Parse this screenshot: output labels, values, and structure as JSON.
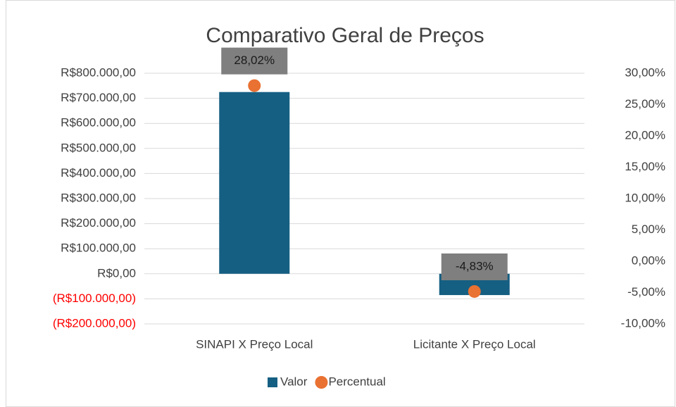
{
  "chart_data": {
    "type": "bar",
    "title": "Comparativo Geral de Preços",
    "categories": [
      "SINAPI X Preço Local",
      "Licitante X Preço Local"
    ],
    "series": [
      {
        "name": "Valor",
        "type": "bar",
        "color": "#155f82",
        "values": [
          725000,
          -85000
        ]
      },
      {
        "name": "Percentual",
        "type": "scatter",
        "axis": "y2",
        "color": "#e97132",
        "values": [
          28.02,
          -4.83
        ],
        "value_labels": [
          "28,02%",
          "-4,83%"
        ]
      }
    ],
    "ylim": [
      -200000,
      800000
    ],
    "yticks": [
      {
        "value": -200000,
        "label": "(R$200.000,00)"
      },
      {
        "value": -100000,
        "label": "(R$100.000,00)"
      },
      {
        "value": 0,
        "label": "R$0,00"
      },
      {
        "value": 100000,
        "label": "R$100.000,00"
      },
      {
        "value": 200000,
        "label": "R$200.000,00"
      },
      {
        "value": 300000,
        "label": "R$300.000,00"
      },
      {
        "value": 400000,
        "label": "R$400.000,00"
      },
      {
        "value": 500000,
        "label": "R$500.000,00"
      },
      {
        "value": 600000,
        "label": "R$600.000,00"
      },
      {
        "value": 700000,
        "label": "R$700.000,00"
      },
      {
        "value": 800000,
        "label": "R$800.000,00"
      }
    ],
    "y2lim": [
      -10,
      30
    ],
    "y2ticks": [
      {
        "value": -10,
        "label": "-10,00%"
      },
      {
        "value": -5,
        "label": "-5,00%"
      },
      {
        "value": 0,
        "label": "0,00%"
      },
      {
        "value": 5,
        "label": "5,00%"
      },
      {
        "value": 10,
        "label": "10,00%"
      },
      {
        "value": 15,
        "label": "15,00%"
      },
      {
        "value": 20,
        "label": "20,00%"
      },
      {
        "value": 25,
        "label": "25,00%"
      },
      {
        "value": 30,
        "label": "30,00%"
      }
    ],
    "negative_tick_color": "#ff0000",
    "grid": true,
    "legend": "bottom"
  }
}
